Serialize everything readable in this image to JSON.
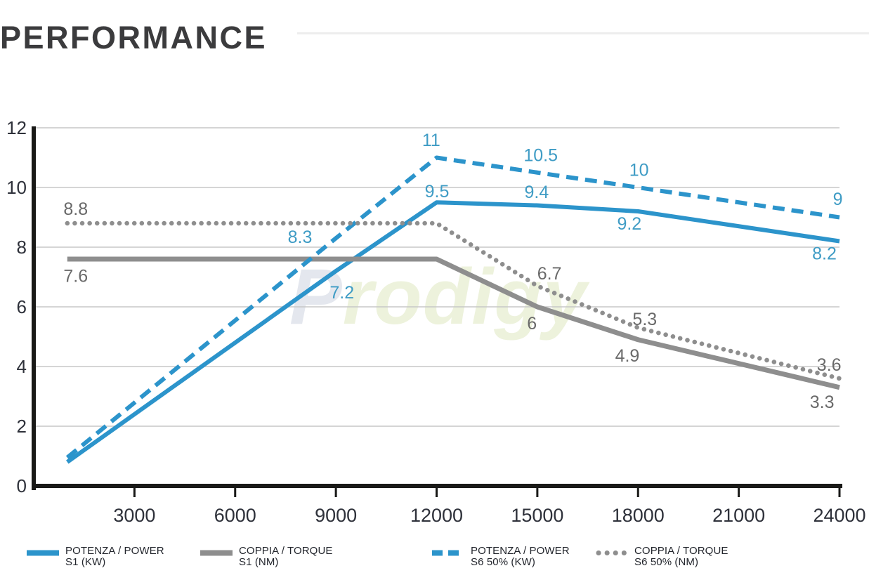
{
  "page": {
    "title": "PERFORMANCE"
  },
  "watermark": {
    "first_letter": "P",
    "rest": "rodigy"
  },
  "colors": {
    "blue": "#2c94cb",
    "gray": "#8e8e8e",
    "blue_label": "#3f9cc5",
    "gray_label": "#6a6a6a",
    "axis": "#191917",
    "grid": "#c7c7c7"
  },
  "chart_data": {
    "type": "line",
    "title": "PERFORMANCE",
    "xlabel": "",
    "ylabel": "",
    "xlim": [
      0,
      24000
    ],
    "ylim": [
      0,
      12
    ],
    "x_ticks": [
      3000,
      6000,
      9000,
      12000,
      15000,
      18000,
      21000,
      24000
    ],
    "y_ticks": [
      0,
      2,
      4,
      6,
      8,
      10,
      12
    ],
    "grid": "horizontal",
    "legend_position": "bottom",
    "series": [
      {
        "key": "power_s1",
        "name": "POTENZA / POWER S1 (KW)",
        "style": "solid",
        "color_key": "blue",
        "points": [
          [
            1000,
            0.8
          ],
          [
            9000,
            7.2
          ],
          [
            12000,
            9.5
          ],
          [
            15000,
            9.4
          ],
          [
            18000,
            9.2
          ],
          [
            24000,
            8.2
          ]
        ]
      },
      {
        "key": "torque_s1",
        "name": "COPPIA / TORQUE S1 (NM)",
        "style": "solid",
        "color_key": "gray",
        "points": [
          [
            1000,
            7.6
          ],
          [
            12000,
            7.6
          ],
          [
            15000,
            6
          ],
          [
            18000,
            4.9
          ],
          [
            24000,
            3.3
          ]
        ]
      },
      {
        "key": "power_s6",
        "name": "POTENZA / POWER S6 50% (KW)",
        "style": "dashed",
        "color_key": "blue",
        "points": [
          [
            1000,
            0.95
          ],
          [
            9000,
            8.3
          ],
          [
            12000,
            11
          ],
          [
            15000,
            10.5
          ],
          [
            18000,
            10
          ],
          [
            24000,
            9
          ]
        ]
      },
      {
        "key": "torque_s6",
        "name": "COPPIA / TORQUE S6 50% (NM)",
        "style": "dotted",
        "color_key": "gray",
        "points": [
          [
            1000,
            8.8
          ],
          [
            12000,
            8.8
          ],
          [
            15000,
            6.7
          ],
          [
            18000,
            5.3
          ],
          [
            24000,
            3.6
          ]
        ]
      }
    ],
    "point_labels": [
      {
        "text": "8.8",
        "x": 1250,
        "y": 9.3,
        "color_key": "gray"
      },
      {
        "text": "7.6",
        "x": 1250,
        "y": 7.05,
        "color_key": "gray"
      },
      {
        "text": "8.3",
        "x": 7930,
        "y": 8.35,
        "color_key": "blue"
      },
      {
        "text": "7.2",
        "x": 9180,
        "y": 6.5,
        "color_key": "blue"
      },
      {
        "text": "11",
        "x": 11840,
        "y": 11.6,
        "color_key": "blue"
      },
      {
        "text": "9.5",
        "x": 12010,
        "y": 9.88,
        "color_key": "blue"
      },
      {
        "text": "10.5",
        "x": 15100,
        "y": 11.1,
        "color_key": "blue"
      },
      {
        "text": "9.4",
        "x": 14980,
        "y": 9.86,
        "color_key": "blue"
      },
      {
        "text": "10",
        "x": 18030,
        "y": 10.6,
        "color_key": "blue"
      },
      {
        "text": "9.2",
        "x": 17740,
        "y": 8.8,
        "color_key": "blue"
      },
      {
        "text": "9",
        "x": 23950,
        "y": 9.62,
        "color_key": "blue"
      },
      {
        "text": "8.2",
        "x": 23550,
        "y": 7.8,
        "color_key": "blue"
      },
      {
        "text": "6.7",
        "x": 15360,
        "y": 7.13,
        "color_key": "gray"
      },
      {
        "text": "6",
        "x": 14840,
        "y": 5.46,
        "color_key": "gray"
      },
      {
        "text": "5.3",
        "x": 18200,
        "y": 5.6,
        "color_key": "gray"
      },
      {
        "text": "4.9",
        "x": 17680,
        "y": 4.38,
        "color_key": "gray"
      },
      {
        "text": "3.6",
        "x": 23690,
        "y": 4.07,
        "color_key": "gray"
      },
      {
        "text": "3.3",
        "x": 23480,
        "y": 2.82,
        "color_key": "gray"
      }
    ]
  },
  "legend": [
    {
      "line1": "POTENZA / POWER",
      "line2": "S1 (KW)",
      "style": "solid",
      "color_key": "blue"
    },
    {
      "line1": "COPPIA / TORQUE",
      "line2": "S1 (NM)",
      "style": "solid",
      "color_key": "gray"
    },
    {
      "line1": "POTENZA / POWER",
      "line2": "S6 50% (KW)",
      "style": "dashed",
      "color_key": "blue"
    },
    {
      "line1": "COPPIA / TORQUE",
      "line2": "S6 50% (NM)",
      "style": "dotted",
      "color_key": "gray"
    }
  ]
}
